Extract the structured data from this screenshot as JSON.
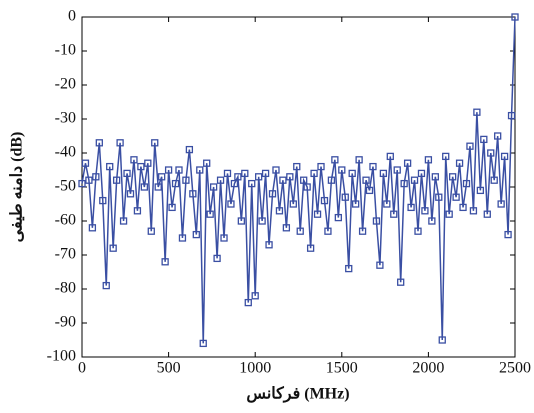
{
  "chart_data": {
    "type": "line",
    "x_label": "فرکانس (MHz)",
    "y_label": "دامنه طیفی (dB)",
    "x": [
      0,
      20,
      40,
      60,
      80,
      100,
      120,
      140,
      160,
      180,
      200,
      220,
      240,
      260,
      280,
      300,
      320,
      340,
      360,
      380,
      400,
      420,
      440,
      460,
      480,
      500,
      520,
      540,
      560,
      580,
      600,
      620,
      640,
      660,
      680,
      700,
      720,
      740,
      760,
      780,
      800,
      820,
      840,
      860,
      880,
      900,
      920,
      940,
      960,
      980,
      1000,
      1020,
      1040,
      1060,
      1080,
      1100,
      1120,
      1140,
      1160,
      1180,
      1200,
      1220,
      1240,
      1260,
      1280,
      1300,
      1320,
      1340,
      1360,
      1380,
      1400,
      1420,
      1440,
      1460,
      1480,
      1500,
      1520,
      1540,
      1560,
      1580,
      1600,
      1620,
      1640,
      1660,
      1680,
      1700,
      1720,
      1740,
      1760,
      1780,
      1800,
      1820,
      1840,
      1860,
      1880,
      1900,
      1920,
      1940,
      1960,
      1980,
      2000,
      2020,
      2040,
      2060,
      2080,
      2100,
      2120,
      2140,
      2160,
      2180,
      2200,
      2220,
      2240,
      2260,
      2280,
      2300,
      2320,
      2340,
      2360,
      2380,
      2400,
      2420,
      2440,
      2460,
      2480,
      2500
    ],
    "series": [
      {
        "color": "#3a4fa3",
        "values": [
          -49,
          -43,
          -48,
          -62,
          -47,
          -37,
          -54,
          -79,
          -44,
          -68,
          -48,
          -37,
          -60,
          -46,
          -52,
          -42,
          -57,
          -44,
          -50,
          -43,
          -63,
          -37,
          -50,
          -47,
          -72,
          -45,
          -56,
          -49,
          -45,
          -65,
          -48,
          -39,
          -52,
          -64,
          -45,
          -96,
          -43,
          -58,
          -50,
          -71,
          -48,
          -65,
          -46,
          -55,
          -49,
          -47,
          -60,
          -46,
          -84,
          -49,
          -82,
          -47,
          -60,
          -46,
          -67,
          -52,
          -45,
          -57,
          -48,
          -62,
          -47,
          -55,
          -44,
          -63,
          -48,
          -50,
          -68,
          -46,
          -58,
          -44,
          -54,
          -63,
          -48,
          -42,
          -59,
          -45,
          -53,
          -74,
          -46,
          -55,
          -42,
          -63,
          -48,
          -51,
          -44,
          -60,
          -73,
          -46,
          -55,
          -41,
          -58,
          -45,
          -78,
          -49,
          -43,
          -56,
          -48,
          -63,
          -46,
          -57,
          -42,
          -60,
          -47,
          -53,
          -95,
          -41,
          -58,
          -47,
          -53,
          -43,
          -56,
          -49,
          -38,
          -57,
          -28,
          -51,
          -36,
          -58,
          -40,
          -48,
          -35,
          -55,
          -41,
          -64,
          -29,
          0
        ]
      }
    ],
    "xlim": [
      0,
      2500
    ],
    "ylim": [
      -100,
      0
    ],
    "xticks": [
      0,
      500,
      1000,
      1500,
      2000,
      2500
    ],
    "yticks": [
      0,
      -10,
      -20,
      -30,
      -40,
      -50,
      -60,
      -70,
      -80,
      -90,
      -100
    ]
  }
}
